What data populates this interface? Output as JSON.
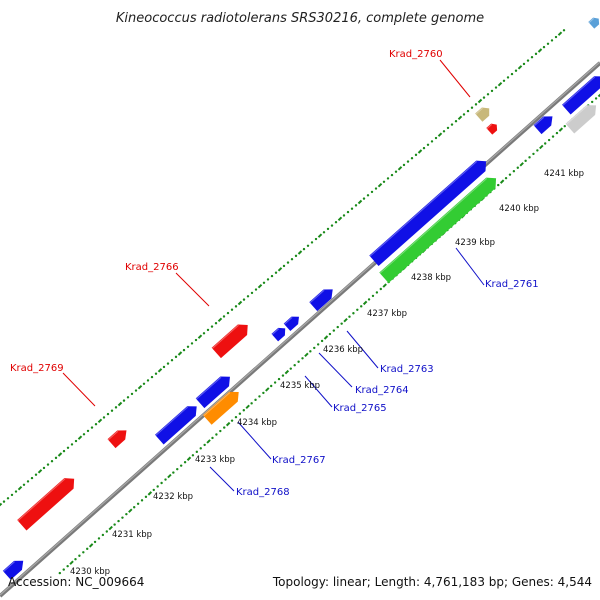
{
  "title": "Kineococcus radiotolerans SRS30216, complete genome",
  "accession": "Accession: NC_009664",
  "summary": "Topology: linear; Length: 4,761,183 bp; Genes: 4,544",
  "colors": {
    "backbone": "#888888",
    "tick": "#1a8a1a",
    "label_red": "#e00000",
    "label_blue": "#1010c8",
    "gene_blue": "#1010e6",
    "gene_red": "#ee1010",
    "gene_green": "#33cc33",
    "gene_orange": "#ff8c00",
    "gene_tan": "#c8b87a",
    "gene_gray": "#cccccc"
  },
  "kbp_labels": [
    "4230 kbp",
    "4231 kbp",
    "4232 kbp",
    "4233 kbp",
    "4234 kbp",
    "4235 kbp",
    "4236 kbp",
    "4237 kbp",
    "4238 kbp",
    "4239 kbp",
    "4240 kbp",
    "4241 kbp"
  ],
  "gene_labels": [
    {
      "text": "Krad_2760",
      "style": "red"
    },
    {
      "text": "Krad_2766",
      "style": "red"
    },
    {
      "text": "Krad_2769",
      "style": "red"
    },
    {
      "text": "Krad_2761",
      "style": "blue"
    },
    {
      "text": "Krad_2763",
      "style": "blue"
    },
    {
      "text": "Krad_2764",
      "style": "blue"
    },
    {
      "text": "Krad_2765",
      "style": "blue"
    },
    {
      "text": "Krad_2767",
      "style": "blue"
    },
    {
      "text": "Krad_2768",
      "style": "blue"
    }
  ]
}
